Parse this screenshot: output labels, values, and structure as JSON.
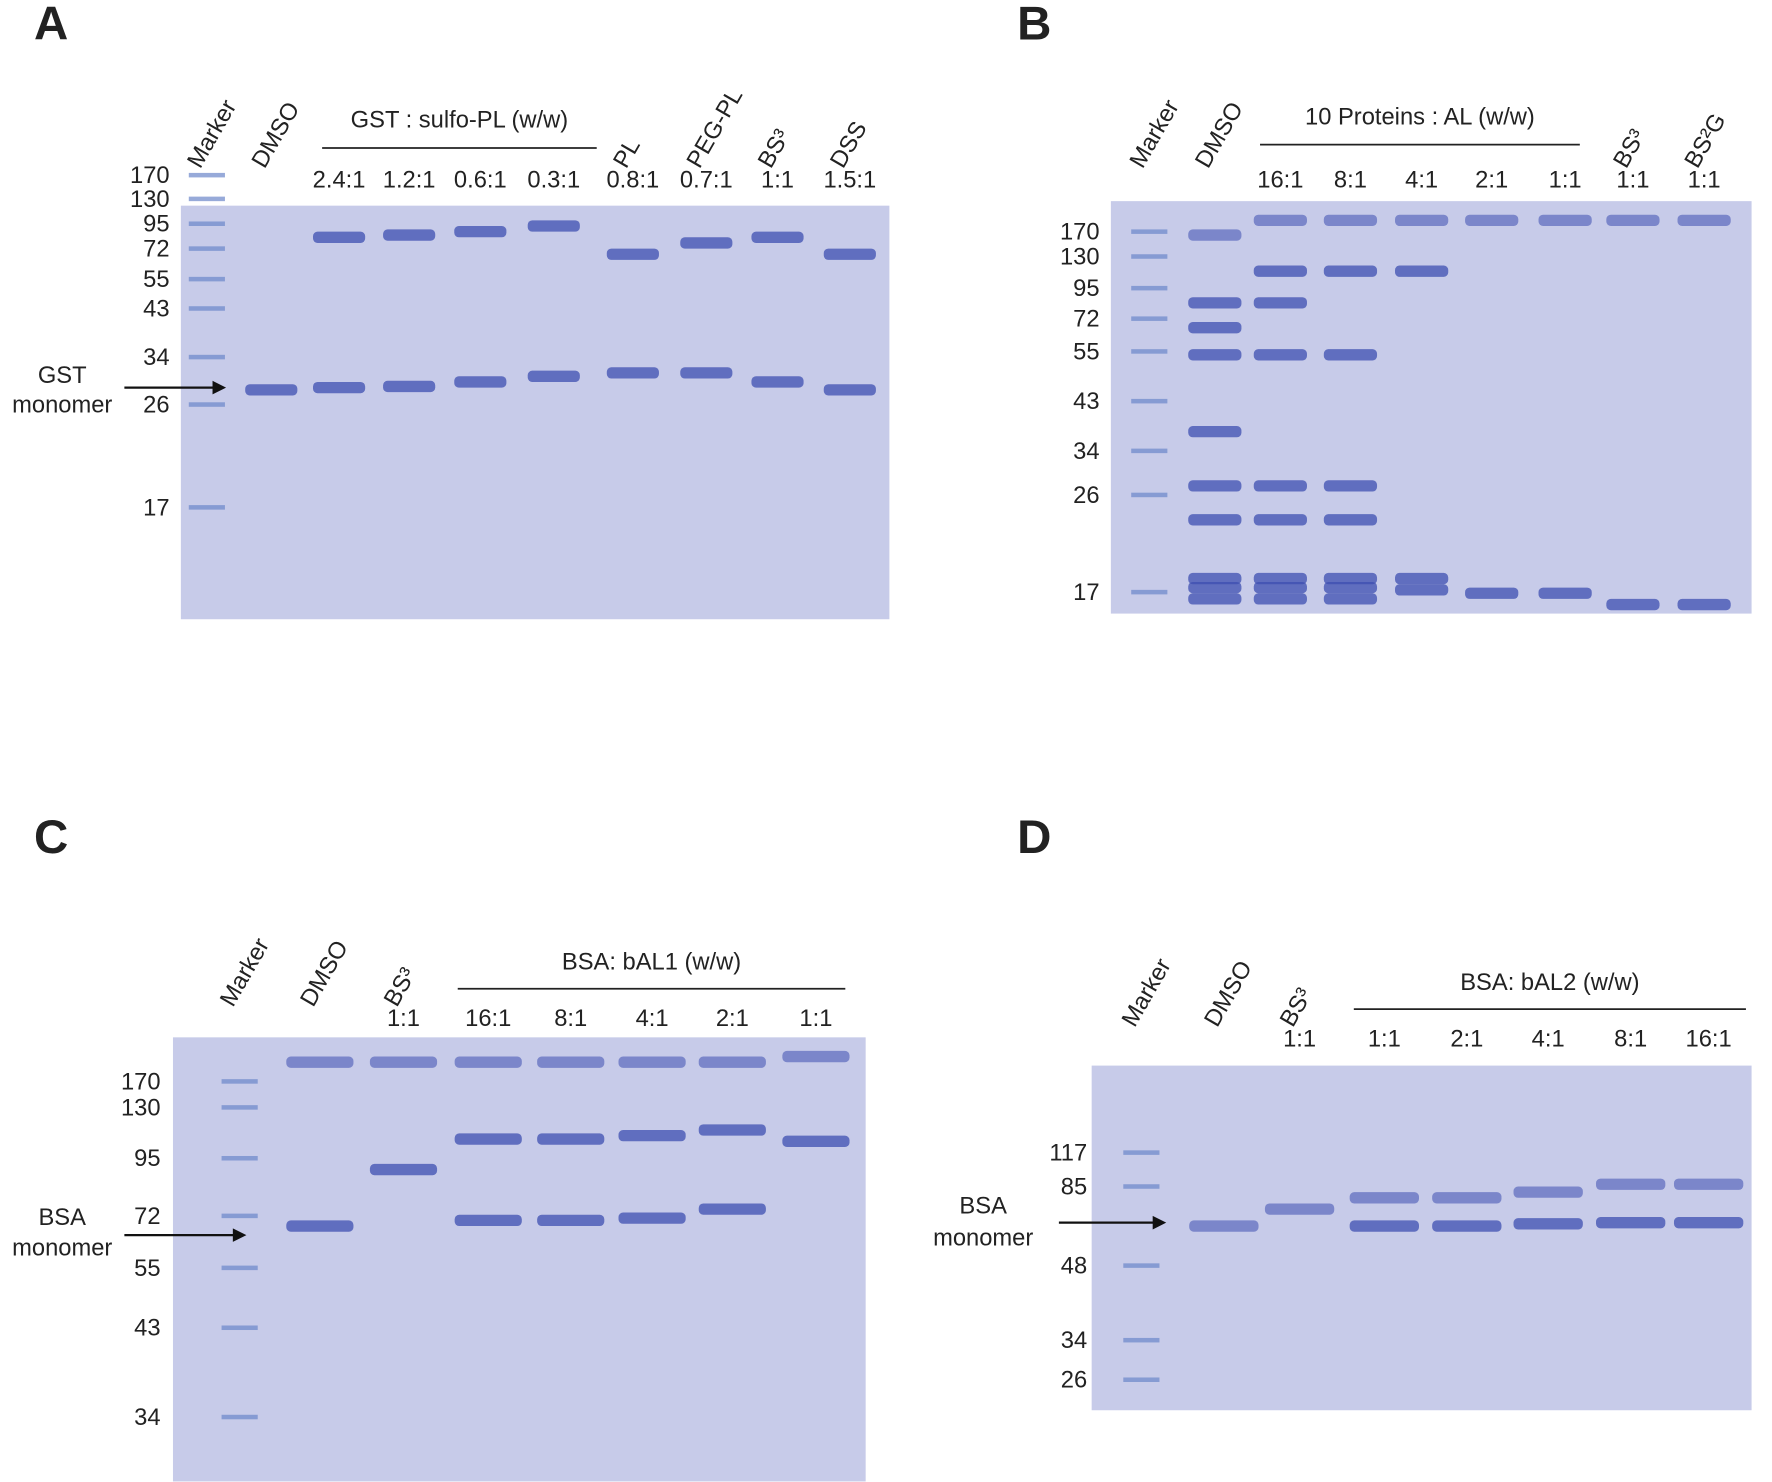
{
  "panels": [
    {
      "letter": "A",
      "group_label": "GST : sulfo-PL (w/w)",
      "lanes": [
        {
          "name": "Marker"
        },
        {
          "name": "DMSO"
        },
        {
          "ratio": "2.4:1"
        },
        {
          "ratio": "1.2:1"
        },
        {
          "ratio": "0.6:1"
        },
        {
          "ratio": "0.3:1"
        },
        {
          "name": "PL",
          "ratio": "0.8:1"
        },
        {
          "name": "PEG-PL",
          "ratio": "0.7:1"
        },
        {
          "name": "BS³",
          "ratio": "1:1"
        },
        {
          "name": "DSS",
          "ratio": "1.5:1"
        }
      ],
      "markers": [
        170,
        130,
        95,
        72,
        55,
        43,
        34,
        26,
        17
      ],
      "target": [
        "GST",
        "monomer"
      ]
    },
    {
      "letter": "B",
      "group_label": "10 Proteins : AL (w/w)",
      "lanes": [
        {
          "name": "Marker"
        },
        {
          "name": "DMSO"
        },
        {
          "ratio": "16:1"
        },
        {
          "ratio": "8:1"
        },
        {
          "ratio": "4:1"
        },
        {
          "ratio": "2:1"
        },
        {
          "ratio": "1:1"
        },
        {
          "name": "BS³",
          "ratio": "1:1"
        },
        {
          "name": "BS²G",
          "ratio": "1:1"
        }
      ],
      "markers": [
        170,
        130,
        95,
        72,
        55,
        43,
        34,
        26,
        17
      ]
    },
    {
      "letter": "C",
      "group_label": "BSA: bAL1 (w/w)",
      "lanes": [
        {
          "name": "Marker"
        },
        {
          "name": "DMSO"
        },
        {
          "name": "BS³",
          "ratio": "1:1"
        },
        {
          "ratio": "16:1"
        },
        {
          "ratio": "8:1"
        },
        {
          "ratio": "4:1"
        },
        {
          "ratio": "2:1"
        },
        {
          "ratio": "1:1"
        }
      ],
      "markers": [
        170,
        130,
        95,
        72,
        55,
        43,
        34
      ],
      "target": [
        "BSA",
        "monomer"
      ]
    },
    {
      "letter": "D",
      "group_label": "BSA: bAL2 (w/w)",
      "lanes": [
        {
          "name": "Marker"
        },
        {
          "name": "DMSO"
        },
        {
          "name": "BS³",
          "ratio": "1:1"
        },
        {
          "ratio": "1:1"
        },
        {
          "ratio": "2:1"
        },
        {
          "ratio": "4:1"
        },
        {
          "ratio": "8:1"
        },
        {
          "ratio": "16:1"
        }
      ],
      "markers": [
        117,
        85,
        48,
        34,
        26
      ],
      "target": [
        "BSA",
        "monomer"
      ]
    }
  ]
}
